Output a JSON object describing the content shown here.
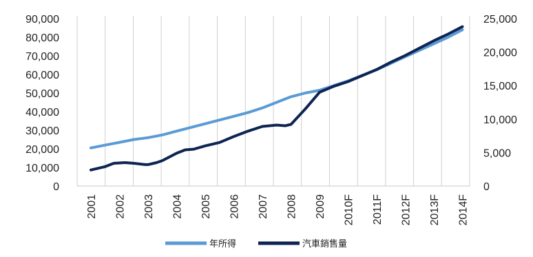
{
  "chart_data": {
    "type": "line",
    "categories": [
      "2001",
      "2002",
      "2003",
      "2004",
      "2005",
      "2006",
      "2007",
      "2008",
      "2009",
      "2010F",
      "2011F",
      "2012F",
      "2013F",
      "2014F"
    ],
    "left_axis": {
      "ylim": [
        0,
        90000
      ],
      "ticks": [
        0,
        10000,
        20000,
        30000,
        40000,
        50000,
        60000,
        70000,
        80000,
        90000
      ],
      "tick_labels": [
        "0",
        "10,000",
        "20,000",
        "30,000",
        "40,000",
        "50,000",
        "60,000",
        "70,000",
        "80,000",
        "90,000"
      ]
    },
    "right_axis": {
      "ylim": [
        0,
        25000
      ],
      "ticks": [
        0,
        5000,
        10000,
        15000,
        20000,
        25000
      ],
      "tick_labels": [
        "0",
        "5,000",
        "10,000",
        "15,000",
        "20,000",
        "25,000"
      ]
    },
    "series": [
      {
        "name": "年所得",
        "axis": "left",
        "color": "#5b9bd5",
        "x": [
          2001.0,
          2001.5,
          2002.0,
          2002.5,
          2003.0,
          2003.5,
          2004.0,
          2004.5,
          2005.0,
          2005.5,
          2006.0,
          2006.5,
          2007.0,
          2007.5,
          2008.0,
          2008.5,
          2009.0,
          2009.5,
          2010.0,
          2010.5,
          2011.0,
          2011.5,
          2012.0,
          2012.5,
          2013.0,
          2013.5,
          2014.0
        ],
        "values": [
          20500,
          22000,
          23500,
          25000,
          26000,
          27500,
          29500,
          31500,
          33500,
          35500,
          37500,
          39500,
          42000,
          45000,
          48000,
          50000,
          51500,
          54000,
          56500,
          59500,
          62500,
          66000,
          69500,
          73000,
          76500,
          80000,
          84000
        ]
      },
      {
        "name": "汽車銷售量",
        "axis": "right",
        "color": "#0e2452",
        "x": [
          2001.0,
          2001.5,
          2001.8,
          2002.2,
          2002.5,
          2002.9,
          2003.0,
          2003.3,
          2003.5,
          2004.0,
          2004.3,
          2004.6,
          2005.0,
          2005.5,
          2006.0,
          2006.5,
          2007.0,
          2007.5,
          2007.8,
          2008.0,
          2008.5,
          2009.0,
          2009.5,
          2010.0,
          2010.5,
          2011.0,
          2011.5,
          2012.0,
          2012.5,
          2013.0,
          2013.5,
          2014.0
        ],
        "values": [
          2400,
          2900,
          3400,
          3500,
          3400,
          3200,
          3200,
          3500,
          3800,
          4900,
          5400,
          5500,
          6000,
          6500,
          7400,
          8200,
          8900,
          9100,
          9000,
          9200,
          11500,
          14000,
          14900,
          15600,
          16500,
          17400,
          18500,
          19500,
          20600,
          21700,
          22700,
          23800
        ]
      }
    ],
    "grid": "vertical",
    "legend": "bottom-center"
  }
}
